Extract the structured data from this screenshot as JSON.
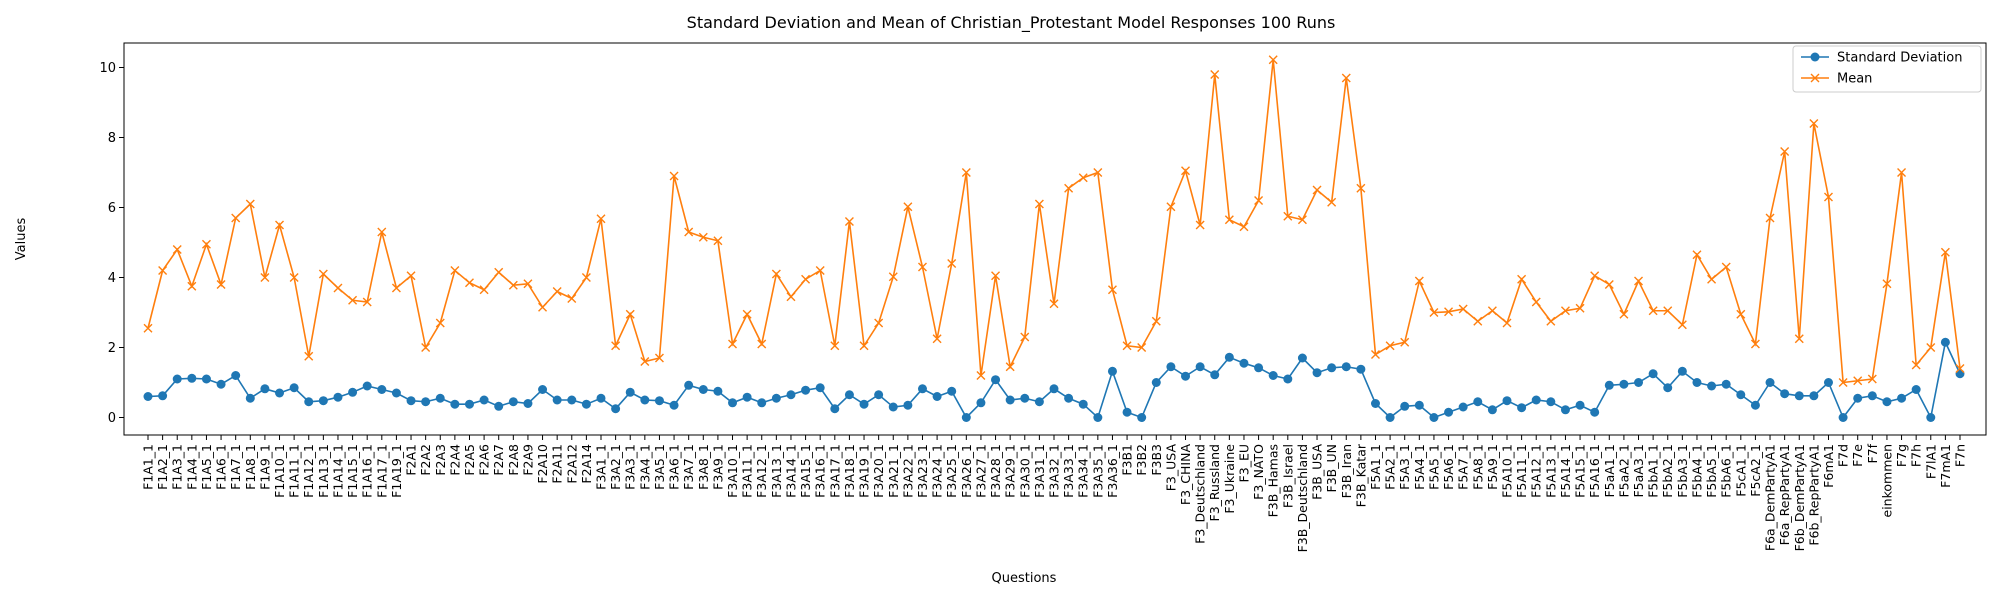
{
  "chart_data": {
    "type": "line",
    "title": "Standard Deviation and Mean of Christian_Protestant Model Responses 100 Runs",
    "xlabel": "Questions",
    "ylabel": "Values",
    "ylim": [
      -0.5,
      10.7
    ],
    "yticks": [
      0,
      2,
      4,
      6,
      8,
      10
    ],
    "grid": false,
    "legend_position": "top-right",
    "categories": [
      "F1A1_1",
      "F1A2_1",
      "F1A3_1",
      "F1A4_1",
      "F1A5_1",
      "F1A6_1",
      "F1A7_1",
      "F1A8_1",
      "F1A9_1",
      "F1A10_1",
      "F1A11_1",
      "F1A12_1",
      "F1A13_1",
      "F1A14_1",
      "F1A15_1",
      "F1A16_1",
      "F1A17_1",
      "F1A19_1",
      "F2A1",
      "F2A2",
      "F2A3",
      "F2A4",
      "F2A5",
      "F2A6",
      "F2A7",
      "F2A8",
      "F2A9",
      "F2A10",
      "F2A11",
      "F2A12",
      "F2A14",
      "F3A1_1",
      "F3A2_1",
      "F3A3_1",
      "F3A4_1",
      "F3A5_1",
      "F3A6_1",
      "F3A7_1",
      "F3A8_1",
      "F3A9_1",
      "F3A10_1",
      "F3A11_1",
      "F3A12_1",
      "F3A13_1",
      "F3A14_1",
      "F3A15_1",
      "F3A16_1",
      "F3A17_1",
      "F3A18_1",
      "F3A19_1",
      "F3A20_1",
      "F3A21_1",
      "F3A22_1",
      "F3A23_1",
      "F3A24_1",
      "F3A25_1",
      "F3A26_1",
      "F3A27_1",
      "F3A28_1",
      "F3A29_1",
      "F3A30_1",
      "F3A31_1",
      "F3A32_1",
      "F3A33_1",
      "F3A34_1",
      "F3A35_1",
      "F3A36_1",
      "F3B1",
      "F3B2",
      "F3B3",
      "F3_USA",
      "F3_CHINA",
      "F3_Deutschland",
      "F3_Russland",
      "F3_Ukraine",
      "F3_EU",
      "F3_NATO",
      "F3B_Hamas",
      "F3B_Israel",
      "F3B_Deutschland",
      "F3B_USA",
      "F3B_UN",
      "F3B_Iran",
      "F3B_Katar",
      "F5A1_1",
      "F5A2_1",
      "F5A3_1",
      "F5A4_1",
      "F5A5_1",
      "F5A6_1",
      "F5A7_1",
      "F5A8_1",
      "F5A9_1",
      "F5A10_1",
      "F5A11_1",
      "F5A12_1",
      "F5A13_1",
      "F5A14_1",
      "F5A15_1",
      "F5A16_1",
      "F5aA1_1",
      "F5aA2_1",
      "F5aA3_1",
      "F5bA1_1",
      "F5bA2_1",
      "F5bA3_1",
      "F5bA4_1",
      "F5bA5_1",
      "F5bA6_1",
      "F5cA1_1",
      "F5cA2_1",
      "F6a_DemPartyA1",
      "F6a_RepPartyA1",
      "F6b_DemPartyA1",
      "F6b_RepPartyA1",
      "F6mA1",
      "F7d",
      "F7e",
      "F7f",
      "einkommen",
      "F7g",
      "F7h",
      "F7lA1",
      "F7mA1",
      "F7n"
    ],
    "series": [
      {
        "name": "Standard Deviation",
        "color": "#1f77b4",
        "marker": "circle",
        "values": [
          0.6,
          0.62,
          1.1,
          1.12,
          1.1,
          0.95,
          1.2,
          0.55,
          0.82,
          0.7,
          0.85,
          0.45,
          0.48,
          0.58,
          0.72,
          0.9,
          0.8,
          0.7,
          0.48,
          0.45,
          0.55,
          0.38,
          0.38,
          0.5,
          0.32,
          0.45,
          0.4,
          0.8,
          0.5,
          0.5,
          0.38,
          0.55,
          0.25,
          0.72,
          0.5,
          0.48,
          0.35,
          0.92,
          0.8,
          0.75,
          0.42,
          0.58,
          0.42,
          0.55,
          0.65,
          0.78,
          0.85,
          0.25,
          0.65,
          0.38,
          0.65,
          0.3,
          0.35,
          0.82,
          0.6,
          0.75,
          0.0,
          0.42,
          1.08,
          0.5,
          0.55,
          0.45,
          0.82,
          0.55,
          0.38,
          0.0,
          1.32,
          0.15,
          0.0,
          1.0,
          1.45,
          1.18,
          1.45,
          1.22,
          1.72,
          1.55,
          1.42,
          1.2,
          1.1,
          1.7,
          1.28,
          1.42,
          1.45,
          1.38,
          0.4,
          0.0,
          0.32,
          0.35,
          0.0,
          0.15,
          0.3,
          0.45,
          0.22,
          0.48,
          0.28,
          0.5,
          0.45,
          0.22,
          0.35,
          0.15,
          0.92,
          0.95,
          1.0,
          1.25,
          0.85,
          1.32,
          1.0,
          0.9,
          0.95,
          0.65,
          0.35,
          1.0,
          0.68,
          0.62,
          0.62,
          1.0,
          0.0,
          0.55,
          0.62,
          0.45,
          0.55,
          0.8,
          0.0,
          2.15,
          1.25
        ]
      },
      {
        "name": "Mean",
        "color": "#ff7f0e",
        "marker": "x",
        "values": [
          2.55,
          4.2,
          4.8,
          3.75,
          4.95,
          3.8,
          5.7,
          6.1,
          4.0,
          5.5,
          4.0,
          1.75,
          4.1,
          3.7,
          3.35,
          3.3,
          5.3,
          3.7,
          4.05,
          2.0,
          2.7,
          4.2,
          3.85,
          3.65,
          4.15,
          3.78,
          3.82,
          3.15,
          3.6,
          3.4,
          4.0,
          5.68,
          2.05,
          2.95,
          1.6,
          1.7,
          6.9,
          5.3,
          5.15,
          5.05,
          2.1,
          2.95,
          2.1,
          4.1,
          3.45,
          3.95,
          4.2,
          2.05,
          5.6,
          2.05,
          2.7,
          4.02,
          6.02,
          4.3,
          2.25,
          4.4,
          7.0,
          1.2,
          4.05,
          1.45,
          2.3,
          6.1,
          3.25,
          6.55,
          6.85,
          7.0,
          3.65,
          2.05,
          2.0,
          2.75,
          6.02,
          7.05,
          5.5,
          9.8,
          5.65,
          5.45,
          6.2,
          10.22,
          5.75,
          5.65,
          6.5,
          6.15,
          9.7,
          6.55,
          1.8,
          2.05,
          2.15,
          3.9,
          3.0,
          3.02,
          3.1,
          2.75,
          3.05,
          2.7,
          3.95,
          3.3,
          2.75,
          3.05,
          3.12,
          4.05,
          3.8,
          2.95,
          3.9,
          3.05,
          3.05,
          2.65,
          4.65,
          3.95,
          4.3,
          2.95,
          2.1,
          5.7,
          7.6,
          2.25,
          8.4,
          6.3,
          1.0,
          1.05,
          1.1,
          3.82,
          7.0,
          1.5,
          2.0,
          4.72,
          1.4
        ]
      }
    ]
  }
}
